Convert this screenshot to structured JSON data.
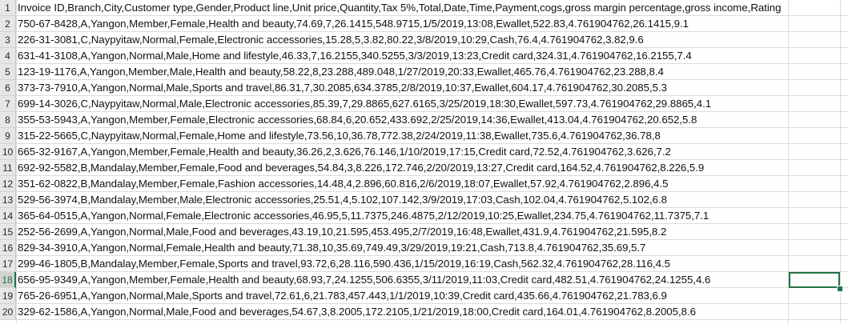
{
  "sheet": {
    "active_row": 18,
    "rows": [
      {
        "num": "1",
        "text": "Invoice ID,Branch,City,Customer type,Gender,Product line,Unit price,Quantity,Tax 5%,Total,Date,Time,Payment,cogs,gross margin percentage,gross income,Rating"
      },
      {
        "num": "2",
        "text": "750-67-8428,A,Yangon,Member,Female,Health and beauty,74.69,7,26.1415,548.9715,1/5/2019,13:08,Ewallet,522.83,4.761904762,26.1415,9.1"
      },
      {
        "num": "3",
        "text": "226-31-3081,C,Naypyitaw,Normal,Female,Electronic accessories,15.28,5,3.82,80.22,3/8/2019,10:29,Cash,76.4,4.761904762,3.82,9.6"
      },
      {
        "num": "4",
        "text": "631-41-3108,A,Yangon,Normal,Male,Home and lifestyle,46.33,7,16.2155,340.5255,3/3/2019,13:23,Credit card,324.31,4.761904762,16.2155,7.4"
      },
      {
        "num": "5",
        "text": "123-19-1176,A,Yangon,Member,Male,Health and beauty,58.22,8,23.288,489.048,1/27/2019,20:33,Ewallet,465.76,4.761904762,23.288,8.4"
      },
      {
        "num": "6",
        "text": "373-73-7910,A,Yangon,Normal,Male,Sports and travel,86.31,7,30.2085,634.3785,2/8/2019,10:37,Ewallet,604.17,4.761904762,30.2085,5.3"
      },
      {
        "num": "7",
        "text": "699-14-3026,C,Naypyitaw,Normal,Male,Electronic accessories,85.39,7,29.8865,627.6165,3/25/2019,18:30,Ewallet,597.73,4.761904762,29.8865,4.1"
      },
      {
        "num": "8",
        "text": "355-53-5943,A,Yangon,Member,Female,Electronic accessories,68.84,6,20.652,433.692,2/25/2019,14:36,Ewallet,413.04,4.761904762,20.652,5.8"
      },
      {
        "num": "9",
        "text": "315-22-5665,C,Naypyitaw,Normal,Female,Home and lifestyle,73.56,10,36.78,772.38,2/24/2019,11:38,Ewallet,735.6,4.761904762,36.78,8"
      },
      {
        "num": "10",
        "text": "665-32-9167,A,Yangon,Member,Female,Health and beauty,36.26,2,3.626,76.146,1/10/2019,17:15,Credit card,72.52,4.761904762,3.626,7.2"
      },
      {
        "num": "11",
        "text": "692-92-5582,B,Mandalay,Member,Female,Food and beverages,54.84,3,8.226,172.746,2/20/2019,13:27,Credit card,164.52,4.761904762,8.226,5.9"
      },
      {
        "num": "12",
        "text": "351-62-0822,B,Mandalay,Member,Female,Fashion accessories,14.48,4,2.896,60.816,2/6/2019,18:07,Ewallet,57.92,4.761904762,2.896,4.5"
      },
      {
        "num": "13",
        "text": "529-56-3974,B,Mandalay,Member,Male,Electronic accessories,25.51,4,5.102,107.142,3/9/2019,17:03,Cash,102.04,4.761904762,5.102,6.8"
      },
      {
        "num": "14",
        "text": "365-64-0515,A,Yangon,Normal,Female,Electronic accessories,46.95,5,11.7375,246.4875,2/12/2019,10:25,Ewallet,234.75,4.761904762,11.7375,7.1"
      },
      {
        "num": "15",
        "text": "252-56-2699,A,Yangon,Normal,Male,Food and beverages,43.19,10,21.595,453.495,2/7/2019,16:48,Ewallet,431.9,4.761904762,21.595,8.2"
      },
      {
        "num": "16",
        "text": "829-34-3910,A,Yangon,Normal,Female,Health and beauty,71.38,10,35.69,749.49,3/29/2019,19:21,Cash,713.8,4.761904762,35.69,5.7"
      },
      {
        "num": "17",
        "text": "299-46-1805,B,Mandalay,Member,Female,Sports and travel,93.72,6,28.116,590.436,1/15/2019,16:19,Cash,562.32,4.761904762,28.116,4.5"
      },
      {
        "num": "18",
        "text": "656-95-9349,A,Yangon,Member,Female,Health and beauty,68.93,7,24.1255,506.6355,3/11/2019,11:03,Credit card,482.51,4.761904762,24.1255,4.6"
      },
      {
        "num": "19",
        "text": "765-26-6951,A,Yangon,Normal,Male,Sports and travel,72.61,6,21.783,457.443,1/1/2019,10:39,Credit card,435.66,4.761904762,21.783,6.9"
      },
      {
        "num": "20",
        "text": "329-62-1586,A,Yangon,Normal,Male,Food and beverages,54.67,3,8.2005,172.2105,1/21/2019,18:00,Credit card,164.01,4.761904762,8.2005,8.6"
      }
    ]
  }
}
